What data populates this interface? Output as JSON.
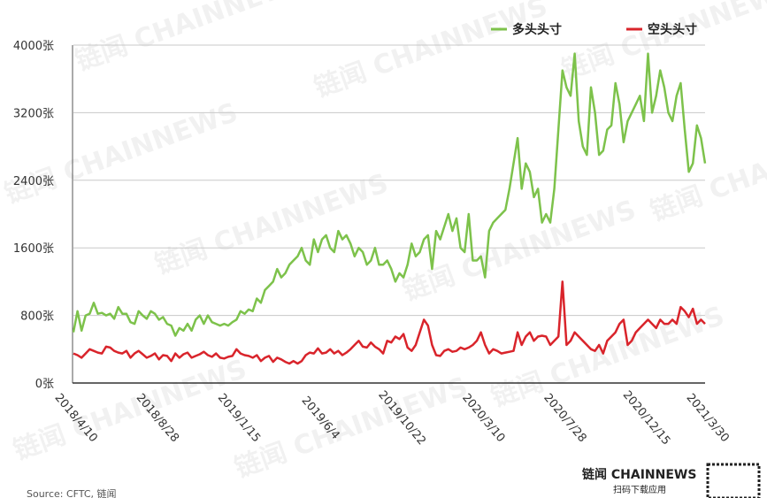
{
  "chart_data": {
    "type": "line",
    "categories": [
      "2018/4/10",
      null,
      null,
      null,
      null,
      null,
      null,
      null,
      null,
      null,
      null,
      null,
      null,
      null,
      null,
      null,
      null,
      null,
      null,
      null,
      "2018/8/28",
      null,
      null,
      null,
      null,
      null,
      null,
      null,
      null,
      null,
      null,
      null,
      null,
      null,
      null,
      null,
      null,
      null,
      null,
      null,
      "2019/1/15",
      null,
      null,
      null,
      null,
      null,
      null,
      null,
      null,
      null,
      null,
      null,
      null,
      null,
      null,
      null,
      null,
      null,
      null,
      null,
      "2019/6/4",
      null,
      null,
      null,
      null,
      null,
      null,
      null,
      null,
      null,
      null,
      null,
      null,
      null,
      null,
      null,
      null,
      null,
      null,
      null,
      "2019/10/22",
      null,
      null,
      null,
      null,
      null,
      null,
      null,
      null,
      null,
      null,
      null,
      null,
      null,
      null,
      null,
      null,
      null,
      null,
      null,
      "2020/3/10",
      null,
      null,
      null,
      null,
      null,
      null,
      null,
      null,
      null,
      null,
      null,
      null,
      null,
      null,
      null,
      null,
      null,
      null,
      null,
      "2020/7/28",
      null,
      null,
      null,
      null,
      null,
      null,
      null,
      null,
      null,
      null,
      null,
      null,
      null,
      null,
      null,
      null,
      null,
      null,
      null,
      "2020/12/15",
      null,
      null,
      null,
      null,
      null,
      null,
      null,
      null,
      null,
      null,
      null,
      null,
      null,
      null,
      "2021/3/30"
    ],
    "series": [
      {
        "name": "多头头寸",
        "color": "#7dc24b",
        "values": [
          600,
          850,
          620,
          800,
          820,
          950,
          820,
          830,
          800,
          820,
          760,
          900,
          820,
          820,
          720,
          700,
          850,
          800,
          760,
          850,
          820,
          750,
          780,
          700,
          680,
          560,
          650,
          620,
          700,
          620,
          750,
          800,
          700,
          800,
          720,
          700,
          680,
          700,
          680,
          720,
          750,
          850,
          820,
          870,
          850,
          1000,
          950,
          1100,
          1150,
          1200,
          1350,
          1250,
          1300,
          1400,
          1450,
          1500,
          1600,
          1450,
          1400,
          1700,
          1550,
          1700,
          1750,
          1600,
          1550,
          1800,
          1700,
          1750,
          1650,
          1500,
          1600,
          1550,
          1400,
          1450,
          1600,
          1400,
          1400,
          1450,
          1350,
          1200,
          1300,
          1250,
          1400,
          1650,
          1500,
          1550,
          1700,
          1750,
          1350,
          1800,
          1700,
          1850,
          2000,
          1800,
          1950,
          1600,
          1550,
          2000,
          1450,
          1450,
          1500,
          1250,
          1800,
          1900,
          1950,
          2000,
          2050,
          2300,
          2600,
          2900,
          2300,
          2600,
          2500,
          2200,
          2300,
          1900,
          2000,
          1900,
          2300,
          3000,
          3700,
          3500,
          3400,
          3900,
          3100,
          2800,
          2700,
          3500,
          3200,
          2700,
          2750,
          3000,
          3050,
          3550,
          3300,
          2850,
          3100,
          3200,
          3300,
          3400,
          3100,
          3900,
          3200,
          3400,
          3700,
          3500,
          3200,
          3100,
          3400,
          3550,
          3000,
          2500,
          2600,
          3050,
          2900,
          2600
        ]
      },
      {
        "name": "空头头寸",
        "color": "#d9242b",
        "values": [
          350,
          330,
          300,
          350,
          400,
          380,
          360,
          350,
          430,
          420,
          380,
          360,
          350,
          380,
          300,
          350,
          380,
          340,
          300,
          320,
          350,
          280,
          330,
          320,
          260,
          350,
          300,
          340,
          360,
          300,
          320,
          340,
          370,
          330,
          310,
          350,
          300,
          290,
          310,
          320,
          400,
          350,
          330,
          320,
          300,
          330,
          260,
          300,
          320,
          250,
          300,
          280,
          250,
          230,
          260,
          230,
          260,
          330,
          360,
          350,
          410,
          350,
          360,
          400,
          350,
          380,
          330,
          360,
          400,
          450,
          500,
          430,
          420,
          480,
          430,
          400,
          350,
          500,
          480,
          550,
          520,
          580,
          420,
          380,
          450,
          600,
          750,
          680,
          450,
          330,
          320,
          380,
          400,
          370,
          380,
          420,
          400,
          420,
          450,
          500,
          600,
          450,
          350,
          400,
          380,
          350,
          360,
          370,
          380,
          600,
          450,
          550,
          600,
          500,
          550,
          560,
          550,
          450,
          500,
          550,
          1200,
          450,
          500,
          600,
          550,
          500,
          450,
          400,
          380,
          450,
          350,
          500,
          550,
          600,
          700,
          750,
          450,
          500,
          600,
          650,
          700,
          750,
          700,
          650,
          750,
          700,
          700,
          750,
          700,
          900,
          850,
          780,
          880,
          700,
          750,
          700
        ]
      }
    ],
    "ylim": [
      0,
      4000
    ],
    "yticks": [
      {
        "value": 0,
        "label": "0张"
      },
      {
        "value": 800,
        "label": "800张"
      },
      {
        "value": 1600,
        "label": "1600张"
      },
      {
        "value": 2400,
        "label": "2400张"
      },
      {
        "value": 3200,
        "label": "3200张"
      },
      {
        "value": 4000,
        "label": "4000张"
      }
    ],
    "grid": true,
    "legend": "top-right",
    "source": "Source: CFTC, 链闻",
    "watermark": "链闻 CHAINNEWS",
    "logo": "链闻 CHAINNEWS",
    "logo_sub": "扫码下载应用"
  }
}
